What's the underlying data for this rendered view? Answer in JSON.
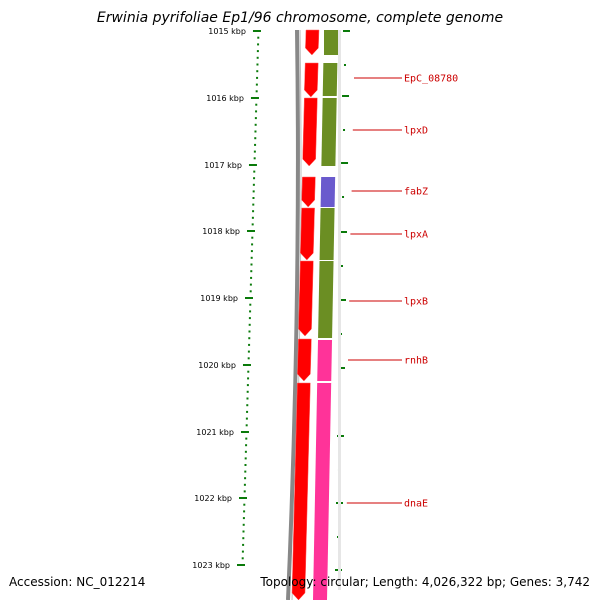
{
  "title": "Erwinia pyrifoliae Ep1/96 chromosome, complete genome",
  "footer": {
    "accession": "Accession: NC_012214",
    "summary": "Topology: circular; Length: 4,026,322 bp; Genes: 3,742"
  },
  "ruler": {
    "ticks": [
      "1015 kbp",
      "1016 kbp",
      "1017 kbp",
      "1018 kbp",
      "1019 kbp",
      "1020 kbp",
      "1021 kbp",
      "1022 kbp",
      "1023 kbp"
    ]
  },
  "genes": [
    {
      "name": "EpC_08780",
      "color": "#6b8e23"
    },
    {
      "name": "lpxD",
      "color": "#6b8e23"
    },
    {
      "name": "fabZ",
      "color": "#6a5acd"
    },
    {
      "name": "lpxA",
      "color": "#6b8e23"
    },
    {
      "name": "lpxB",
      "color": "#6b8e23"
    },
    {
      "name": "rnhB",
      "color": "#ff3399"
    },
    {
      "name": "dnaE",
      "color": "#ff3399"
    }
  ],
  "colors": {
    "cds_strand": "#ff0000",
    "backbone": "#888888",
    "ruler_green": "#0a7a0a",
    "label_red": "#cc0000"
  }
}
